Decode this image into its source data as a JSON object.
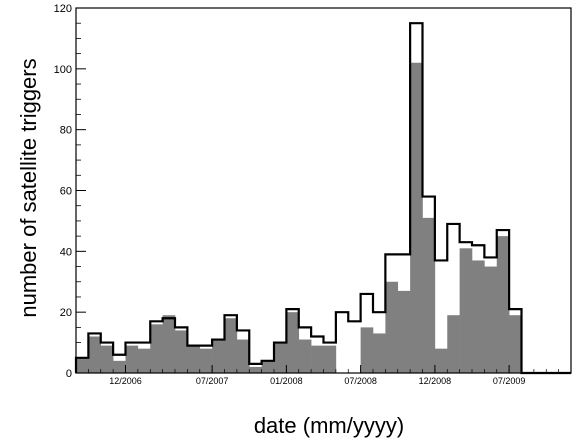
{
  "chart_data": {
    "type": "bar",
    "xlabel": "date (mm/yyyy)",
    "ylabel": "number of satellite triggers",
    "ylim": [
      0,
      120
    ],
    "yticks": [
      0,
      20,
      40,
      60,
      80,
      100,
      120
    ],
    "xtick_labels": [
      "12/2006",
      "07/2007",
      "01/2008",
      "07/2008",
      "12/2008",
      "07/2009"
    ],
    "xtick_bins": [
      4,
      11,
      17,
      23,
      29,
      35
    ],
    "bins": 40,
    "grid": false,
    "legend": "none",
    "series": [
      {
        "style": "outline",
        "color": "#000000",
        "values": [
          5,
          13,
          10,
          6,
          10,
          10,
          17,
          18,
          15,
          9,
          9,
          11,
          19,
          14,
          3,
          4,
          10,
          21,
          15,
          12,
          10,
          20,
          17,
          26,
          20,
          39,
          39,
          115,
          58,
          37,
          49,
          43,
          42,
          38,
          47,
          21,
          0,
          0,
          0,
          0
        ]
      },
      {
        "style": "filled",
        "color": "#808080",
        "values": [
          5,
          12,
          9,
          4,
          9,
          8,
          16,
          19,
          14,
          9,
          8,
          11,
          18,
          11,
          2,
          4,
          10,
          20,
          11,
          9,
          9,
          0,
          0,
          15,
          13,
          30,
          27,
          102,
          51,
          8,
          19,
          41,
          37,
          35,
          45,
          19,
          0,
          0,
          0,
          0
        ]
      }
    ],
    "colors": {
      "filled": "#808080",
      "outline": "#000000",
      "frame": "#000000"
    }
  }
}
